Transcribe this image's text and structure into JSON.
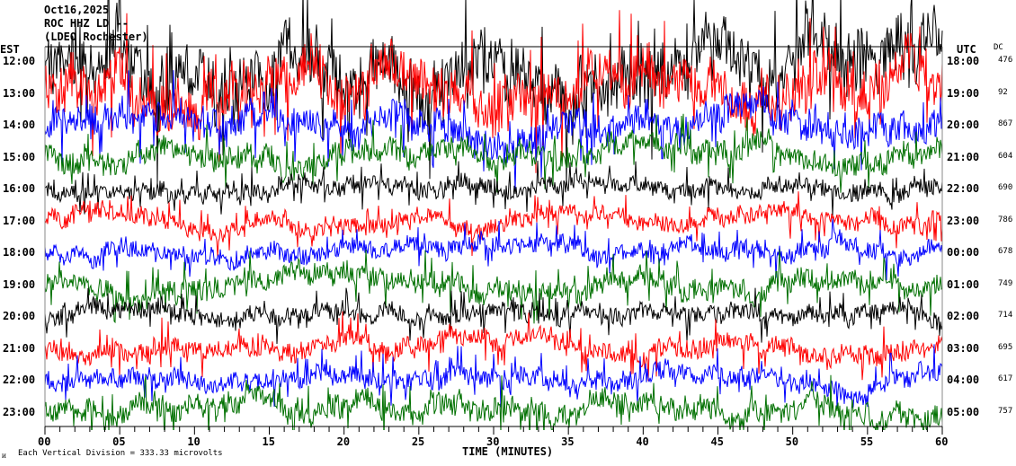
{
  "chart_data": {
    "type": "line",
    "title_lines": [
      "Oct16,2025",
      "ROC HHZ LD --",
      "(LDEO Rochester)"
    ],
    "left_axis_label": "EST",
    "right_axis_label": "UTC",
    "dc_label": "DC",
    "xlabel": "TIME (MINUTES)",
    "xlim": [
      0,
      60
    ],
    "x_ticks": [
      "00",
      "05",
      "10",
      "15",
      "20",
      "25",
      "30",
      "35",
      "40",
      "45",
      "50",
      "55",
      "60"
    ],
    "rows": [
      {
        "est": "12:00",
        "utc": "18:00",
        "dc": "476",
        "color": "#000000",
        "amplitude": 3.0
      },
      {
        "est": "13:00",
        "utc": "19:00",
        "dc": "92",
        "color": "#ff0000",
        "amplitude": 2.6
      },
      {
        "est": "14:00",
        "utc": "20:00",
        "dc": "867",
        "color": "#0000ff",
        "amplitude": 1.6
      },
      {
        "est": "15:00",
        "utc": "21:00",
        "dc": "604",
        "color": "#007000",
        "amplitude": 1.2
      },
      {
        "est": "16:00",
        "utc": "22:00",
        "dc": "690",
        "color": "#000000",
        "amplitude": 0.9
      },
      {
        "est": "17:00",
        "utc": "23:00",
        "dc": "786",
        "color": "#ff0000",
        "amplitude": 0.9
      },
      {
        "est": "18:00",
        "utc": "00:00",
        "dc": "678",
        "color": "#0000ff",
        "amplitude": 0.9
      },
      {
        "est": "19:00",
        "utc": "01:00",
        "dc": "749",
        "color": "#007000",
        "amplitude": 1.1
      },
      {
        "est": "20:00",
        "utc": "02:00",
        "dc": "714",
        "color": "#000000",
        "amplitude": 0.9
      },
      {
        "est": "21:00",
        "utc": "03:00",
        "dc": "695",
        "color": "#ff0000",
        "amplitude": 1.0
      },
      {
        "est": "22:00",
        "utc": "04:00",
        "dc": "617",
        "color": "#0000ff",
        "amplitude": 1.0
      },
      {
        "est": "23:00",
        "utc": "05:00",
        "dc": "757",
        "color": "#007000",
        "amplitude": 1.2
      }
    ]
  },
  "footer": {
    "scale_text": "Each Vertical Division =  333.33 microvolts",
    "corner_mark": "ᴎ"
  }
}
